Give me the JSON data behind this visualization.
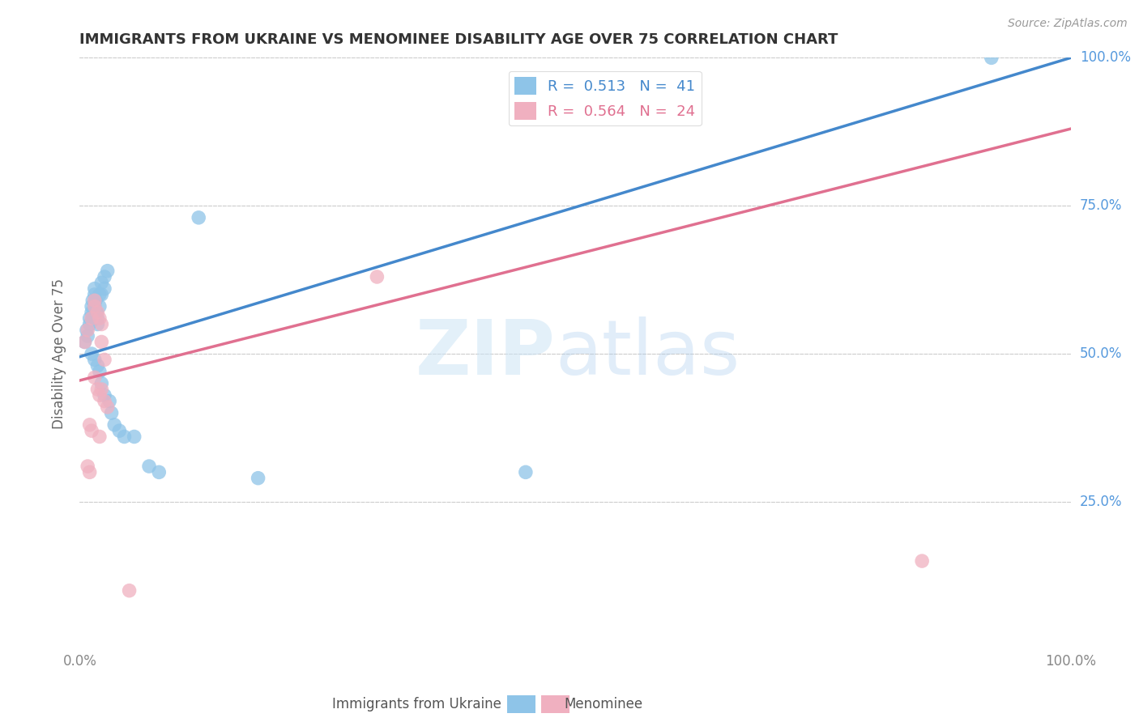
{
  "title": "IMMIGRANTS FROM UKRAINE VS MENOMINEE DISABILITY AGE OVER 75 CORRELATION CHART",
  "source": "Source: ZipAtlas.com",
  "ylabel": "Disability Age Over 75",
  "xlim": [
    0,
    1.0
  ],
  "ylim": [
    0,
    1.0
  ],
  "ytick_values": [
    0.25,
    0.5,
    0.75,
    1.0
  ],
  "background_color": "#ffffff",
  "legend_r1": "R =  0.513   N =  41",
  "legend_r2": "R =  0.564   N =  24",
  "blue_scatter_color": "#8ec4e8",
  "pink_scatter_color": "#f0b0c0",
  "blue_line_color": "#4488cc",
  "pink_line_color": "#e07090",
  "blue_scatter": [
    [
      0.005,
      0.52
    ],
    [
      0.007,
      0.54
    ],
    [
      0.008,
      0.53
    ],
    [
      0.01,
      0.56
    ],
    [
      0.01,
      0.55
    ],
    [
      0.012,
      0.57
    ],
    [
      0.012,
      0.58
    ],
    [
      0.013,
      0.59
    ],
    [
      0.013,
      0.56
    ],
    [
      0.015,
      0.61
    ],
    [
      0.015,
      0.6
    ],
    [
      0.015,
      0.58
    ],
    [
      0.016,
      0.59
    ],
    [
      0.017,
      0.57
    ],
    [
      0.018,
      0.56
    ],
    [
      0.018,
      0.55
    ],
    [
      0.02,
      0.6
    ],
    [
      0.02,
      0.58
    ],
    [
      0.022,
      0.62
    ],
    [
      0.022,
      0.6
    ],
    [
      0.025,
      0.63
    ],
    [
      0.025,
      0.61
    ],
    [
      0.028,
      0.64
    ],
    [
      0.012,
      0.5
    ],
    [
      0.015,
      0.49
    ],
    [
      0.018,
      0.48
    ],
    [
      0.02,
      0.47
    ],
    [
      0.022,
      0.45
    ],
    [
      0.025,
      0.43
    ],
    [
      0.03,
      0.42
    ],
    [
      0.032,
      0.4
    ],
    [
      0.035,
      0.38
    ],
    [
      0.04,
      0.37
    ],
    [
      0.045,
      0.36
    ],
    [
      0.055,
      0.36
    ],
    [
      0.07,
      0.31
    ],
    [
      0.08,
      0.3
    ],
    [
      0.12,
      0.73
    ],
    [
      0.18,
      0.29
    ],
    [
      0.45,
      0.3
    ],
    [
      0.92,
      1.0
    ]
  ],
  "pink_scatter": [
    [
      0.005,
      0.52
    ],
    [
      0.008,
      0.54
    ],
    [
      0.012,
      0.56
    ],
    [
      0.015,
      0.59
    ],
    [
      0.015,
      0.58
    ],
    [
      0.018,
      0.57
    ],
    [
      0.02,
      0.56
    ],
    [
      0.022,
      0.55
    ],
    [
      0.022,
      0.52
    ],
    [
      0.025,
      0.49
    ],
    [
      0.015,
      0.46
    ],
    [
      0.018,
      0.44
    ],
    [
      0.02,
      0.43
    ],
    [
      0.022,
      0.44
    ],
    [
      0.025,
      0.42
    ],
    [
      0.028,
      0.41
    ],
    [
      0.01,
      0.38
    ],
    [
      0.012,
      0.37
    ],
    [
      0.02,
      0.36
    ],
    [
      0.008,
      0.31
    ],
    [
      0.01,
      0.3
    ],
    [
      0.3,
      0.63
    ],
    [
      0.85,
      0.15
    ],
    [
      0.05,
      0.1
    ]
  ],
  "blue_trendline": [
    [
      0.0,
      0.495
    ],
    [
      1.0,
      1.0
    ]
  ],
  "pink_trendline": [
    [
      0.0,
      0.455
    ],
    [
      1.0,
      0.88
    ]
  ],
  "grid_color": "#cccccc",
  "title_color": "#333333",
  "axis_label_color": "#666666",
  "right_label_color": "#5599dd",
  "xtick_color": "#888888",
  "legend_box_color": "#dddddd"
}
